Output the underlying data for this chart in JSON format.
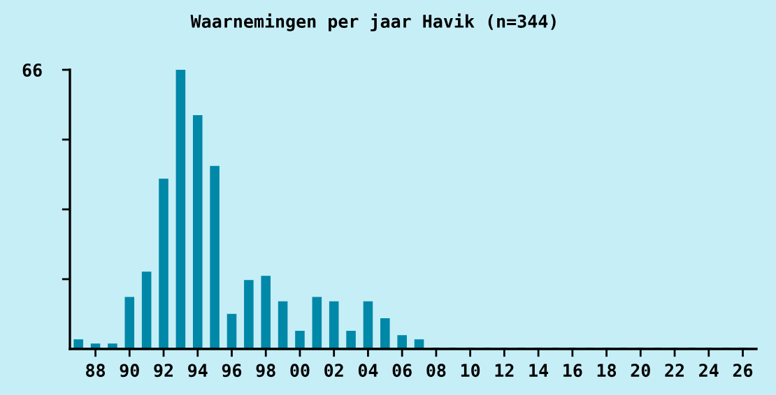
{
  "chart_data": {
    "type": "bar",
    "title": "Waarnemingen per jaar Havik (n=344)",
    "categories": [
      null,
      "88",
      null,
      "90",
      null,
      "92",
      null,
      "94",
      null,
      "96",
      null,
      "98",
      null,
      "00",
      null,
      "02",
      null,
      "04",
      null,
      "06",
      null,
      "08",
      null,
      "10",
      null,
      "12",
      null,
      "14",
      null,
      "16",
      null,
      "18",
      null,
      "20",
      null,
      "22",
      null,
      "24",
      null,
      "26"
    ],
    "values": [
      2,
      1,
      1,
      12,
      18,
      40,
      66,
      55,
      43,
      8,
      16,
      17,
      11,
      4,
      12,
      11,
      4,
      11,
      7,
      3,
      2,
      0,
      0,
      0,
      0,
      0,
      0,
      0,
      0,
      0,
      0,
      0,
      0,
      0,
      0,
      0,
      0,
      0,
      0,
      0
    ],
    "color": "#0088a8",
    "ylim": [
      0,
      66
    ],
    "yticks": [
      {
        "value": 16.5,
        "label": null
      },
      {
        "value": 33,
        "label": null
      },
      {
        "value": 49.5,
        "label": null
      },
      66
    ],
    "grid": false,
    "legend": false
  }
}
